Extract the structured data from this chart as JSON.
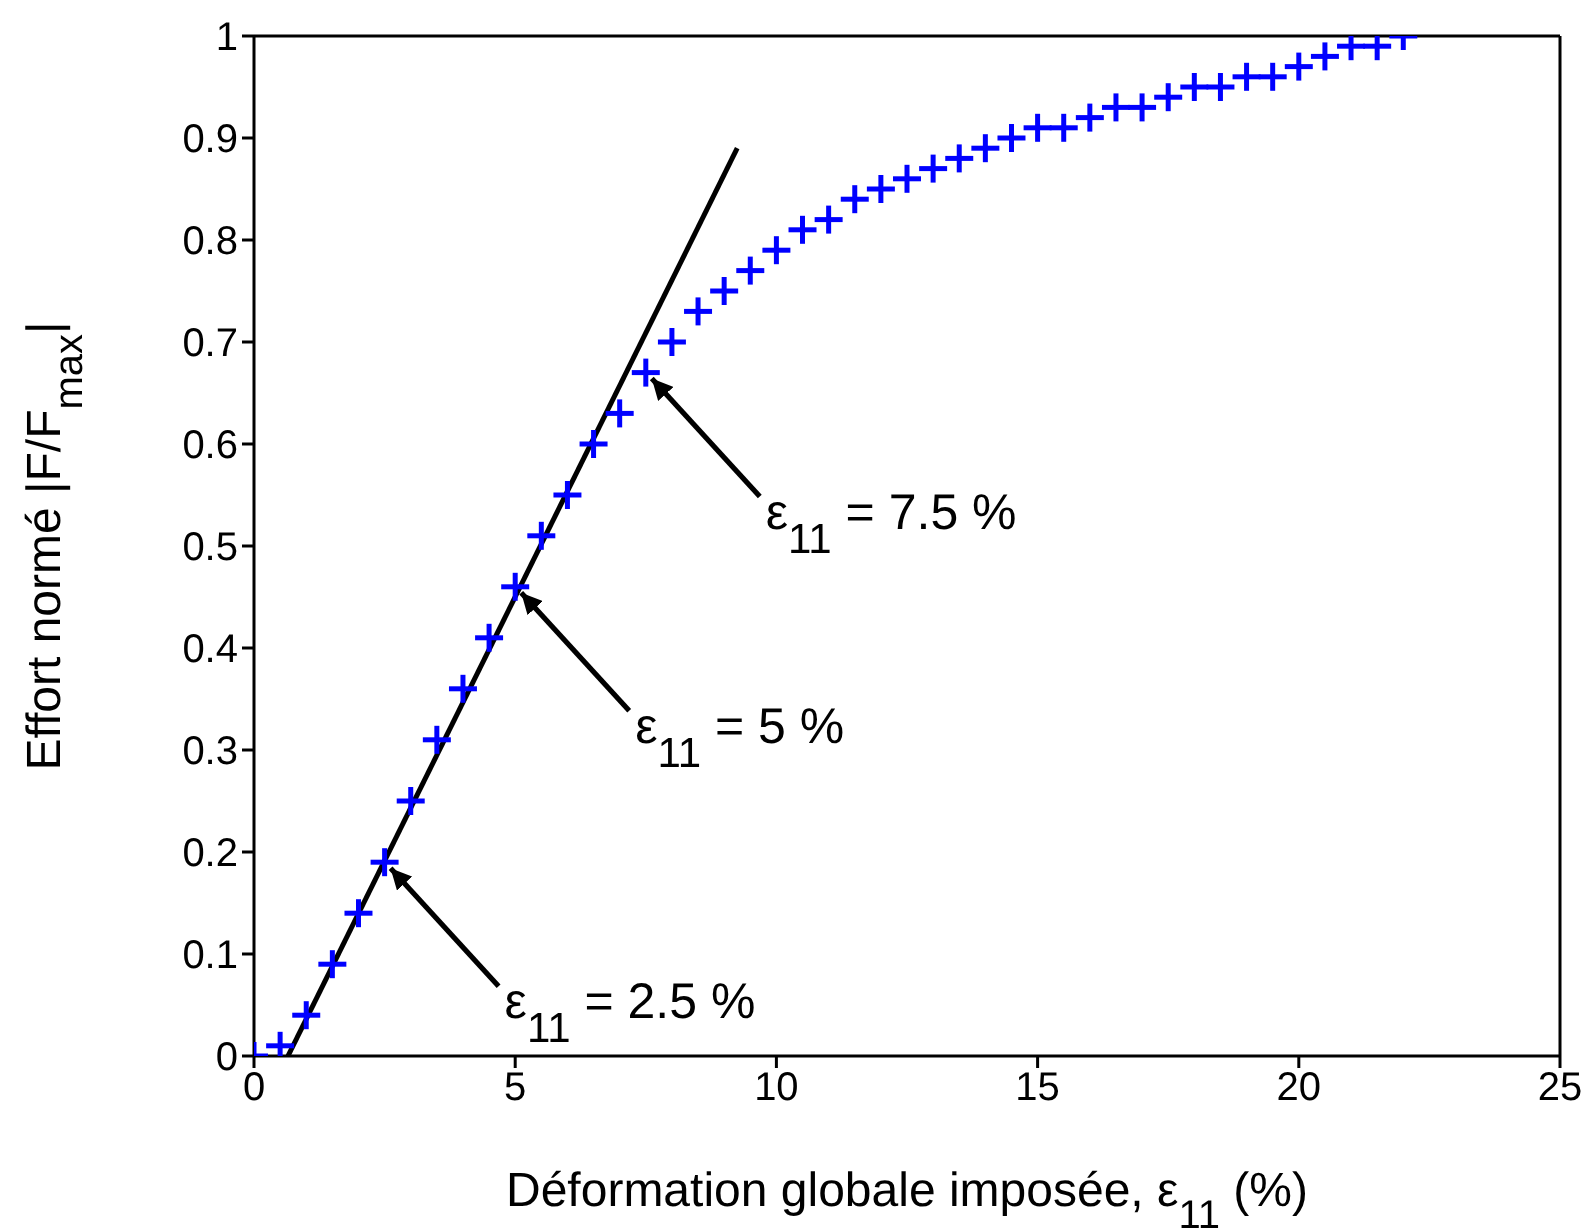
{
  "chart_data": {
    "type": "scatter",
    "xlabel": "Déformation globale imposée, ε$_{11}$ (%)",
    "ylabel": "Effort normé |F/F$_{max}$|",
    "xlim": [
      0,
      25
    ],
    "xticks": [
      0,
      5,
      10,
      15,
      20,
      25
    ],
    "ylim": [
      0,
      1
    ],
    "yticks": [
      0,
      0.1,
      0.2,
      0.3,
      0.4,
      0.5,
      0.6,
      0.7,
      0.8,
      0.9,
      1
    ],
    "grid": false,
    "marker": "cross",
    "series": [
      {
        "type": "scatter",
        "color": "#0000ff",
        "x": [
          0,
          0.5,
          1,
          1.5,
          2,
          2.5,
          3,
          3.5,
          4,
          4.5,
          5,
          5.5,
          6,
          6.5,
          7,
          7.5,
          8,
          8.5,
          9,
          9.5,
          10,
          10.5,
          11,
          11.5,
          12,
          12.5,
          13,
          13.5,
          14,
          14.5,
          15,
          15.5,
          16,
          16.5,
          17,
          17.5,
          18,
          18.5,
          19,
          19.5,
          20,
          20.5,
          21,
          21.5,
          22
        ],
        "values": [
          0,
          0.01,
          0.04,
          0.09,
          0.14,
          0.19,
          0.25,
          0.31,
          0.36,
          0.41,
          0.46,
          0.51,
          0.55,
          0.6,
          0.63,
          0.67,
          0.7,
          0.73,
          0.75,
          0.77,
          0.79,
          0.81,
          0.82,
          0.84,
          0.85,
          0.86,
          0.87,
          0.88,
          0.89,
          0.9,
          0.91,
          0.91,
          0.92,
          0.93,
          0.93,
          0.94,
          0.95,
          0.95,
          0.96,
          0.96,
          0.97,
          0.98,
          0.99,
          0.99,
          1
        ]
      },
      {
        "type": "line",
        "color": "#000000",
        "marker": "none",
        "line_style": "solid",
        "x": [
          0.65,
          9.25
        ],
        "values": [
          0,
          0.89
        ]
      }
    ],
    "annotations": [
      {
        "text": "ε$_{11}$ = 2.5 %",
        "x": 2.5,
        "y": 0.19
      },
      {
        "text": "ε$_{11}$ = 5 %",
        "x": 5,
        "y": 0.46
      },
      {
        "text": "ε$_{11}$ = 7.5 %",
        "x": 7.5,
        "y": 0.67
      }
    ]
  }
}
